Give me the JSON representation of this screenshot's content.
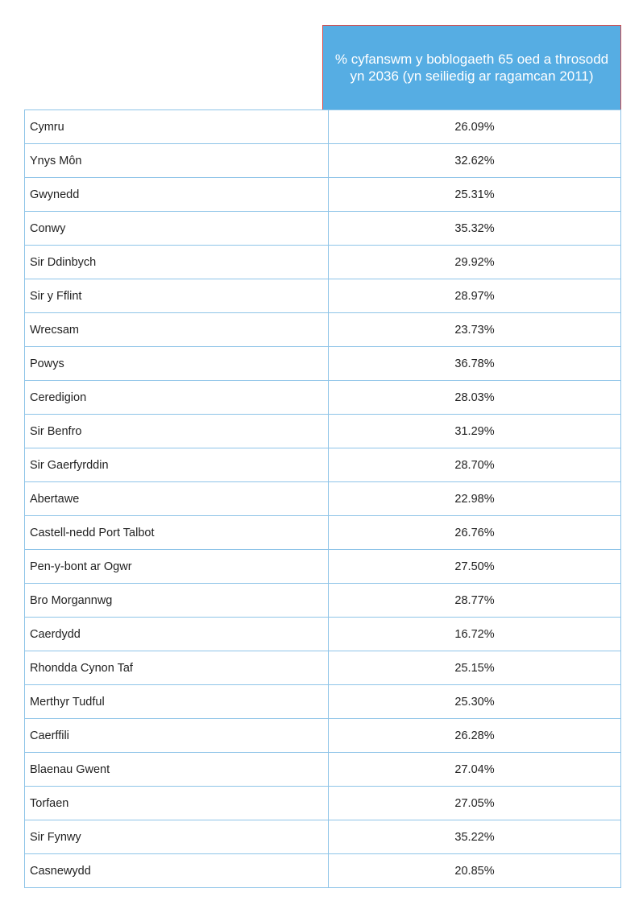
{
  "header": {
    "column_title": "% cyfanswm y boblogaeth 65 oed a throsodd yn 2036 (yn seiliedig ar ragamcan 2011)"
  },
  "rows": [
    {
      "region": "Cymru",
      "value": "26.09%"
    },
    {
      "region": "Ynys Môn",
      "value": "32.62%"
    },
    {
      "region": "Gwynedd",
      "value": "25.31%"
    },
    {
      "region": "Conwy",
      "value": "35.32%"
    },
    {
      "region": "Sir Ddinbych",
      "value": "29.92%"
    },
    {
      "region": "Sir y Fflint",
      "value": "28.97%"
    },
    {
      "region": "Wrecsam",
      "value": "23.73%"
    },
    {
      "region": "Powys",
      "value": "36.78%"
    },
    {
      "region": "Ceredigion",
      "value": "28.03%"
    },
    {
      "region": "Sir Benfro",
      "value": "31.29%"
    },
    {
      "region": "Sir Gaerfyrddin",
      "value": "28.70%"
    },
    {
      "region": "Abertawe",
      "value": "22.98%"
    },
    {
      "region": "Castell-nedd Port Talbot",
      "value": "26.76%"
    },
    {
      "region": "Pen-y-bont ar Ogwr",
      "value": "27.50%"
    },
    {
      "region": "Bro Morgannwg",
      "value": "28.77%"
    },
    {
      "region": "Caerdydd",
      "value": "16.72%"
    },
    {
      "region": "Rhondda Cynon Taf",
      "value": "25.15%"
    },
    {
      "region": "Merthyr Tudful",
      "value": "25.30%"
    },
    {
      "region": "Caerffili",
      "value": "26.28%"
    },
    {
      "region": "Blaenau Gwent",
      "value": "27.04%"
    },
    {
      "region": "Torfaen",
      "value": "27.05%"
    },
    {
      "region": "Sir Fynwy",
      "value": "35.22%"
    },
    {
      "region": "Casnewydd",
      "value": "20.85%"
    }
  ],
  "colors": {
    "header_background": "#56ade3",
    "header_border": "#d64a4a",
    "grid_border": "#8ec4e8"
  }
}
